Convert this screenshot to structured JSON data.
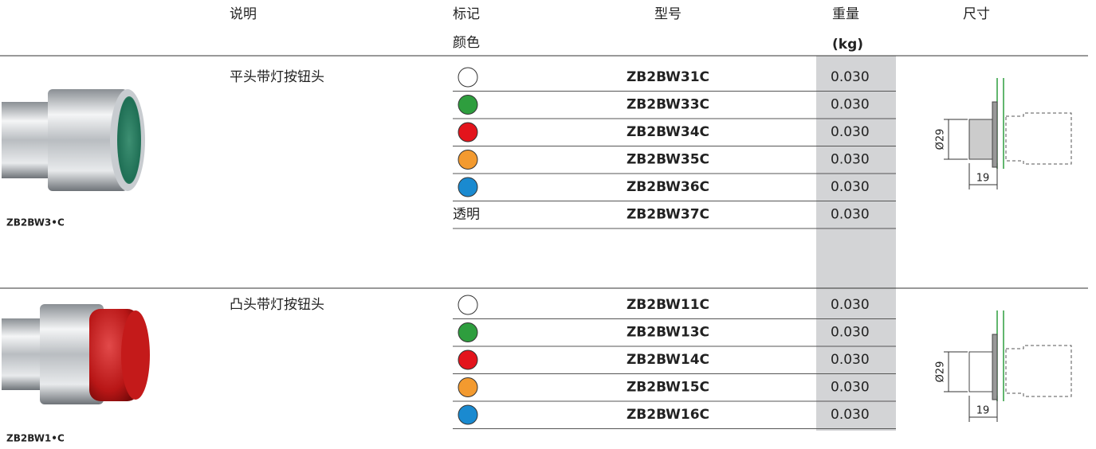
{
  "header": {
    "description": "说明",
    "color": [
      "标记",
      "颜色"
    ],
    "model": "型号",
    "weight": [
      "重量",
      "(kg)"
    ],
    "dimensions": "尺寸"
  },
  "sections": [
    {
      "image_label": "ZB2BW3•C",
      "description": "平头带灯按钮头",
      "dimension_labels": [
        "Ø29",
        "19"
      ],
      "rows": [
        {
          "swatch": "#ffffff",
          "model": "ZB2BW31C",
          "weight": "0.030"
        },
        {
          "swatch": "#2e9e3e",
          "model": "ZB2BW33C",
          "weight": "0.030"
        },
        {
          "swatch": "#e3141c",
          "model": "ZB2BW34C",
          "weight": "0.030"
        },
        {
          "swatch": "#f39a2f",
          "model": "ZB2BW35C",
          "weight": "0.030"
        },
        {
          "swatch": "#1a8ad0",
          "model": "ZB2BW36C",
          "weight": "0.030"
        },
        {
          "color_text": "透明",
          "model": "ZB2BW37C",
          "weight": "0.030"
        }
      ]
    },
    {
      "image_label": "ZB2BW1•C",
      "description": "凸头带灯按钮头",
      "dimension_labels": [
        "Ø29",
        "19"
      ],
      "rows": [
        {
          "swatch": "#ffffff",
          "model": "ZB2BW11C",
          "weight": "0.030"
        },
        {
          "swatch": "#2e9e3e",
          "model": "ZB2BW13C",
          "weight": "0.030"
        },
        {
          "swatch": "#e3141c",
          "model": "ZB2BW14C",
          "weight": "0.030"
        },
        {
          "swatch": "#f39a2f",
          "model": "ZB2BW15C",
          "weight": "0.030"
        },
        {
          "swatch": "#1a8ad0",
          "model": "ZB2BW16C",
          "weight": "0.030"
        }
      ]
    }
  ]
}
